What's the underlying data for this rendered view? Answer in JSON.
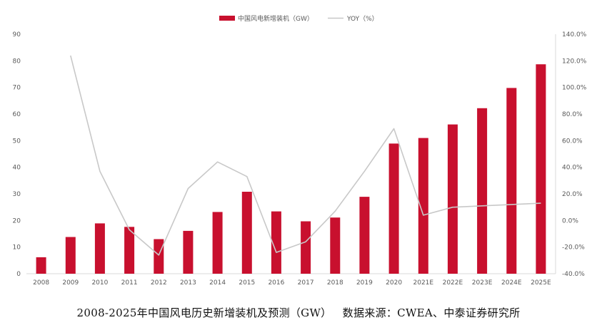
{
  "caption": "2008-2025年中国风电历史新增装机及预测（GW）   数据来源：CWEA、中泰证券研究所",
  "colors": {
    "bar": "#c8102e",
    "line": "#c8c8c8",
    "axis": "#d9d9d9",
    "text": "#595959"
  },
  "chart_data": {
    "type": "bar",
    "categories": [
      "2008",
      "2009",
      "2010",
      "2011",
      "2012",
      "2013",
      "2014",
      "2015",
      "2016",
      "2017",
      "2018",
      "2019",
      "2020",
      "2021E",
      "2022E",
      "2023E",
      "2024E",
      "2025E"
    ],
    "series": [
      {
        "name": "中国风电新增装机（GW）",
        "type": "bar",
        "axis": "left",
        "values": [
          6.2,
          13.8,
          18.9,
          17.6,
          13.0,
          16.1,
          23.2,
          30.8,
          23.4,
          19.7,
          21.1,
          28.9,
          48.9,
          51.0,
          56.1,
          62.2,
          69.8,
          78.7
        ]
      },
      {
        "name": "YOY（%）",
        "type": "line",
        "axis": "right",
        "values": [
          null,
          124,
          37,
          -7,
          -26,
          24,
          44,
          33,
          -24,
          -16,
          7,
          37,
          69,
          4,
          10,
          11,
          12,
          13
        ]
      }
    ],
    "yleft": {
      "lim": [
        0,
        90
      ],
      "ticks": [
        "0",
        "10",
        "20",
        "30",
        "40",
        "50",
        "60",
        "70",
        "80",
        "90"
      ]
    },
    "yright": {
      "lim": [
        -40,
        140
      ],
      "ticks": [
        "-40.0%",
        "-20.0%",
        "0.0%",
        "20.0%",
        "40.0%",
        "60.0%",
        "80.0%",
        "100.0%",
        "120.0%",
        "140.0%"
      ]
    },
    "legend_position": "top-center",
    "grid": false
  }
}
